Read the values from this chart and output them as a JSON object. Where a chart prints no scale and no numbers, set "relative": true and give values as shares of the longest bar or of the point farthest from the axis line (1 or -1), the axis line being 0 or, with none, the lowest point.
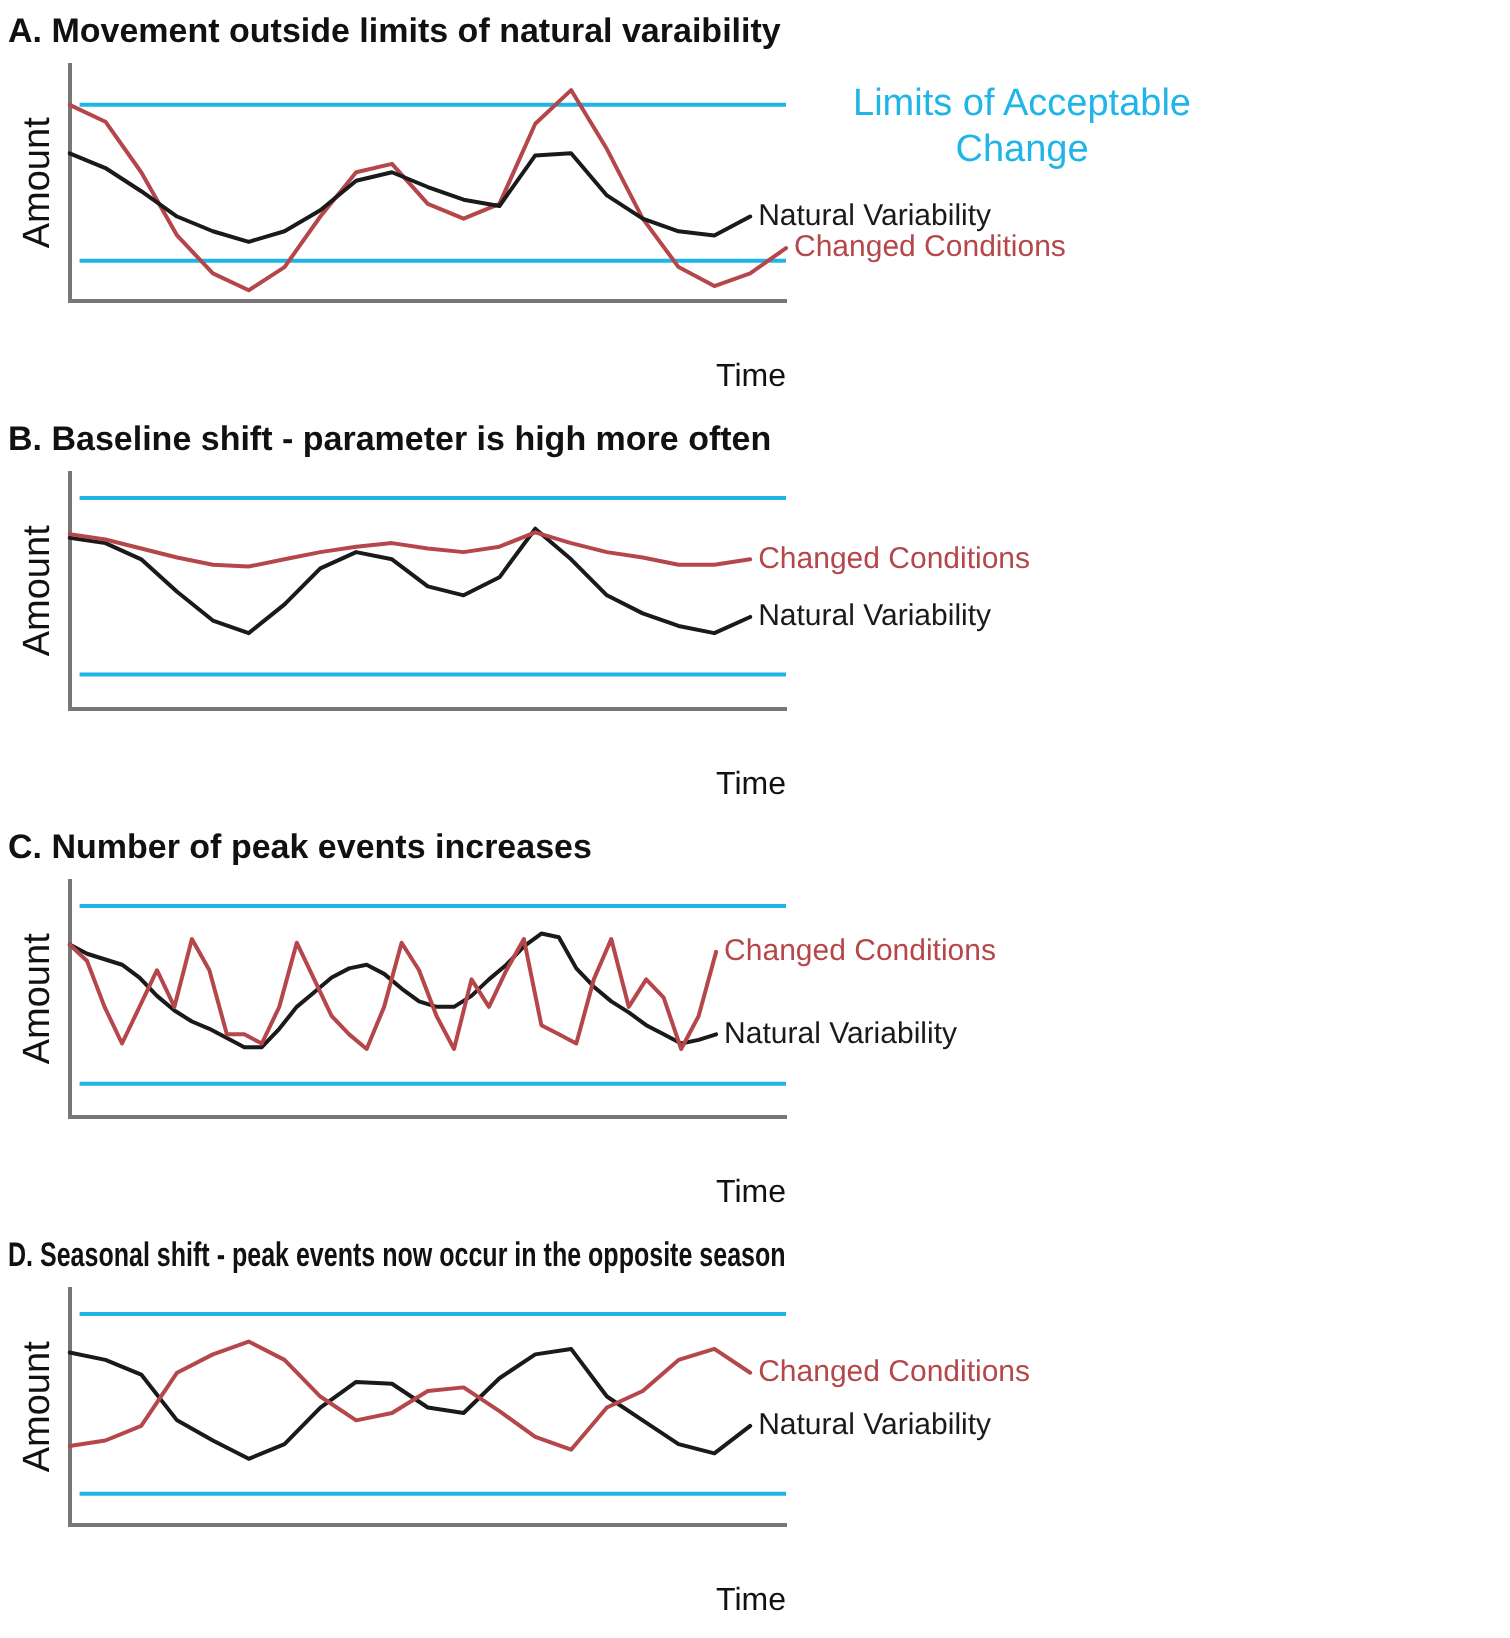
{
  "chart_data": [
    {
      "type": "line",
      "title": "A. Movement outside limits of natural varaibility",
      "xlabel": "Time",
      "ylabel": "Amount",
      "relative": true,
      "legend": false,
      "grid": false,
      "marker": "none",
      "categories": [
        null,
        null,
        null,
        null,
        null,
        null,
        null,
        null,
        null,
        null,
        null,
        null,
        null,
        null,
        null,
        null,
        null,
        null,
        null,
        null,
        null
      ],
      "series": [
        {
          "name": "Natural Variability",
          "color": "#1a1a1a",
          "values": [
            0.7,
            0.63,
            0.52,
            0.4,
            0.33,
            0.28,
            0.33,
            0.43,
            0.57,
            0.61,
            0.54,
            0.48,
            0.45,
            0.69,
            0.7,
            0.5,
            0.39,
            0.33,
            0.31,
            0.4,
            null
          ]
        },
        {
          "name": "Changed Conditions",
          "color": "#b5474b",
          "values": [
            0.93,
            0.85,
            0.61,
            0.31,
            0.13,
            0.05,
            0.16,
            0.4,
            0.61,
            0.65,
            0.46,
            0.39,
            0.46,
            0.84,
            1,
            0.72,
            0.39,
            0.16,
            0.07,
            0.13,
            0.25
          ]
        }
      ],
      "ref_lines": [
        {
          "axis": "y",
          "value": 0.93,
          "label": "Limits of Acceptable Change",
          "color": "#1fb5e6"
        },
        {
          "axis": "y",
          "value": 0.19,
          "color": "#1fb5e6"
        }
      ]
    },
    {
      "type": "line",
      "title": "B. Baseline shift - parameter is high more often",
      "xlabel": "Time",
      "ylabel": "Amount",
      "relative": true,
      "legend": false,
      "grid": false,
      "marker": "none",
      "categories": [
        null,
        null,
        null,
        null,
        null,
        null,
        null,
        null,
        null,
        null,
        null,
        null,
        null,
        null,
        null,
        null,
        null,
        null,
        null,
        null,
        null
      ],
      "series": [
        {
          "name": "Changed Conditions",
          "color": "#b5474b",
          "values": [
            0.97,
            0.94,
            0.89,
            0.84,
            0.8,
            0.79,
            0.83,
            0.87,
            0.9,
            0.92,
            0.89,
            0.87,
            0.9,
            0.98,
            0.92,
            0.87,
            0.84,
            0.8,
            0.8,
            0.83,
            null
          ]
        },
        {
          "name": "Natural Variability",
          "color": "#1a1a1a",
          "values": [
            0.95,
            0.92,
            0.83,
            0.65,
            0.49,
            0.42,
            0.58,
            0.78,
            0.87,
            0.83,
            0.68,
            0.63,
            0.73,
            1,
            0.83,
            0.63,
            0.53,
            0.46,
            0.42,
            0.51,
            null
          ]
        }
      ],
      "ref_lines": [
        {
          "axis": "y",
          "value": 1.17,
          "color": "#1fb5e6"
        },
        {
          "axis": "y",
          "value": 0.19,
          "color": "#1fb5e6"
        }
      ]
    },
    {
      "type": "line",
      "title": "C. Number of peak events increases",
      "xlabel": "Time",
      "ylabel": "Amount",
      "relative": true,
      "legend": false,
      "grid": false,
      "marker": "none",
      "categories": [
        null,
        null,
        null,
        null,
        null,
        null,
        null,
        null,
        null,
        null,
        null,
        null,
        null,
        null,
        null,
        null,
        null,
        null,
        null,
        null,
        null,
        null,
        null,
        null,
        null,
        null,
        null,
        null,
        null,
        null,
        null,
        null,
        null,
        null,
        null,
        null,
        null,
        null,
        null,
        null,
        null,
        null
      ],
      "series": [
        {
          "name": "Changed Conditions",
          "color": "#b5474b",
          "values": [
            0.94,
            0.85,
            0.6,
            0.4,
            0.6,
            0.8,
            0.6,
            0.97,
            0.8,
            0.45,
            0.45,
            0.4,
            0.6,
            0.95,
            0.75,
            0.55,
            0.45,
            0.37,
            0.6,
            0.95,
            0.8,
            0.55,
            0.37,
            0.75,
            0.6,
            0.8,
            0.97,
            0.5,
            0.45,
            0.4,
            0.75,
            0.97,
            0.6,
            0.75,
            0.65,
            0.37,
            0.55,
            0.9,
            null,
            null,
            null,
            null
          ]
        },
        {
          "name": "Natural Variability",
          "color": "#1a1a1a",
          "values": [
            0.94,
            0.89,
            0.86,
            0.83,
            0.76,
            0.66,
            0.58,
            0.52,
            0.48,
            0.43,
            0.38,
            0.38,
            0.48,
            0.6,
            0.68,
            0.76,
            0.81,
            0.83,
            0.78,
            0.7,
            0.63,
            0.6,
            0.6,
            0.66,
            0.75,
            0.83,
            0.93,
            1,
            0.98,
            0.81,
            0.71,
            0.63,
            0.57,
            0.5,
            0.45,
            0.4,
            0.42,
            0.45,
            null,
            null,
            null,
            null
          ]
        }
      ],
      "ref_lines": [
        {
          "axis": "y",
          "value": 1.15,
          "color": "#1fb5e6"
        },
        {
          "axis": "y",
          "value": 0.18,
          "color": "#1fb5e6"
        }
      ]
    },
    {
      "type": "line",
      "title": "D. Seasonal shift - peak events now occur in the opposite season",
      "xlabel": "Time",
      "ylabel": "Amount",
      "relative": true,
      "legend": false,
      "grid": false,
      "marker": "none",
      "categories": [
        null,
        null,
        null,
        null,
        null,
        null,
        null,
        null,
        null,
        null,
        null,
        null,
        null,
        null,
        null,
        null,
        null,
        null,
        null,
        null,
        null
      ],
      "series": [
        {
          "name": "Changed Conditions",
          "color": "#b5474b",
          "values": [
            0.43,
            0.46,
            0.54,
            0.83,
            0.93,
            1,
            0.9,
            0.7,
            0.57,
            0.61,
            0.73,
            0.75,
            0.62,
            0.48,
            0.41,
            0.64,
            0.73,
            0.9,
            0.96,
            0.83,
            null
          ]
        },
        {
          "name": "Natural Variability",
          "color": "#1a1a1a",
          "values": [
            0.94,
            0.9,
            0.82,
            0.57,
            0.46,
            0.36,
            0.44,
            0.64,
            0.78,
            0.77,
            0.64,
            0.61,
            0.8,
            0.93,
            0.96,
            0.7,
            0.57,
            0.44,
            0.39,
            0.54,
            null
          ]
        }
      ],
      "ref_lines": [
        {
          "axis": "y",
          "value": 1.15,
          "color": "#1fb5e6"
        },
        {
          "axis": "y",
          "value": 0.17,
          "color": "#1fb5e6"
        }
      ]
    }
  ]
}
